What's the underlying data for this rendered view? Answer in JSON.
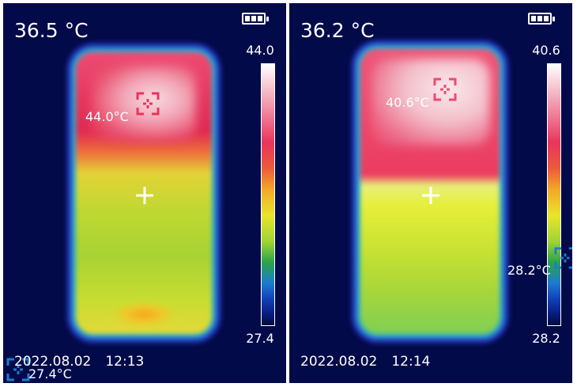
{
  "panels": [
    {
      "readout": "36.5 °C",
      "scale_max": "44.0",
      "scale_min": "27.4",
      "max_spot_label": "44.0°C",
      "min_spot_label": "27.4°C",
      "date": "2022.08.02",
      "time": "12:13",
      "battery_level": 1.0
    },
    {
      "readout": "36.2 °C",
      "scale_max": "40.6",
      "scale_min": "28.2",
      "max_spot_label": "40.6°C",
      "min_spot_label": "28.2°C",
      "date": "2022.08.02",
      "time": "12:14",
      "battery_level": 1.0
    }
  ],
  "colors": {
    "background": "#030a4a",
    "max_marker": "#e8355d",
    "min_marker": "#1c7bd0",
    "text": "#ffffff"
  },
  "icons": {
    "battery": "battery-full-icon",
    "center_crosshair": "crosshair-icon",
    "max_marker": "target-icon",
    "min_marker": "target-icon"
  }
}
